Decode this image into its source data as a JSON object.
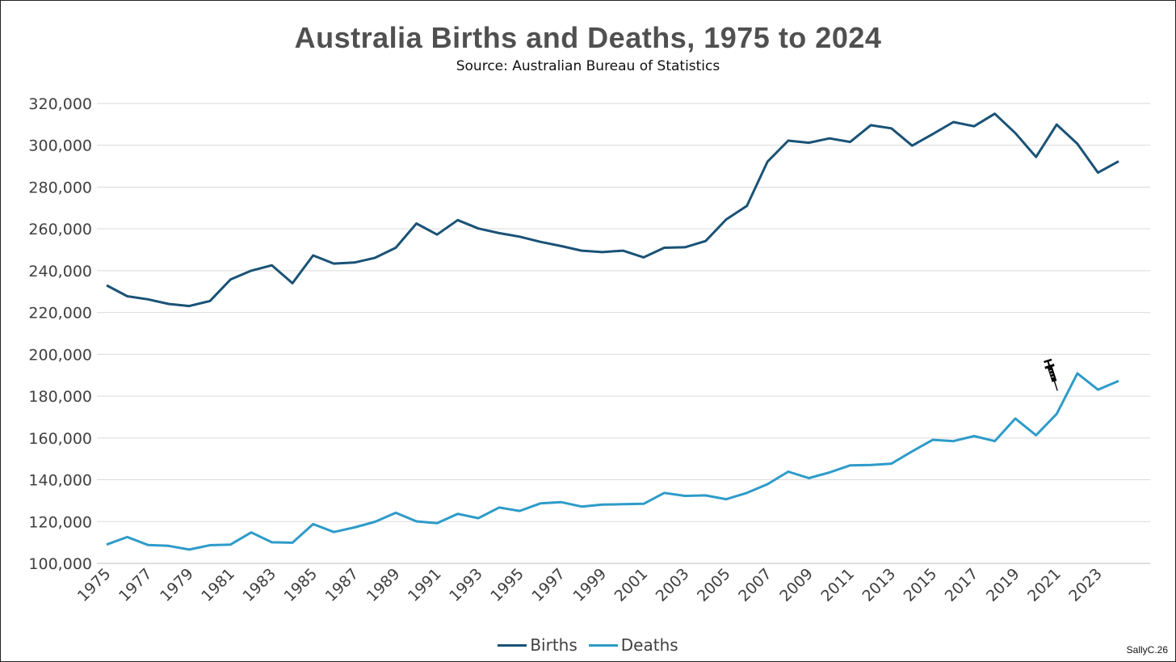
{
  "chart_data": {
    "type": "line",
    "title": "Australia Births and Deaths, 1975 to 2024",
    "subtitle": "Source: Australian Bureau of Statistics",
    "xlabel": "",
    "ylabel": "",
    "ylim": [
      100000,
      320000
    ],
    "yticks": [
      100000,
      120000,
      140000,
      160000,
      180000,
      200000,
      220000,
      240000,
      260000,
      280000,
      300000,
      320000
    ],
    "ytick_labels": [
      "100,000",
      "120,000",
      "140,000",
      "160,000",
      "180,000",
      "200,000",
      "220,000",
      "240,000",
      "260,000",
      "280,000",
      "300,000",
      "320,000"
    ],
    "x": [
      1975,
      1976,
      1977,
      1978,
      1979,
      1980,
      1981,
      1982,
      1983,
      1984,
      1985,
      1986,
      1987,
      1988,
      1989,
      1990,
      1991,
      1992,
      1993,
      1994,
      1995,
      1996,
      1997,
      1998,
      1999,
      2000,
      2001,
      2002,
      2003,
      2004,
      2005,
      2006,
      2007,
      2008,
      2009,
      2010,
      2011,
      2012,
      2013,
      2014,
      2015,
      2016,
      2017,
      2018,
      2019,
      2020,
      2021,
      2022,
      2023,
      2024
    ],
    "xtick_labels": [
      "1975",
      "1977",
      "1979",
      "1981",
      "1983",
      "1985",
      "1987",
      "1989",
      "1991",
      "1993",
      "1995",
      "1997",
      "1999",
      "2001",
      "2003",
      "2005",
      "2007",
      "2009",
      "2011",
      "2013",
      "2015",
      "2017",
      "2019",
      "2021",
      "2023"
    ],
    "grid": true,
    "legend_position": "bottom-center",
    "series": [
      {
        "name": "Births",
        "color": "#1a5276",
        "values": [
          233000,
          227800,
          226300,
          224100,
          223100,
          225500,
          235800,
          240000,
          242600,
          234000,
          247300,
          243400,
          243900,
          246200,
          251000,
          262600,
          257300,
          264200,
          260200,
          258000,
          256300,
          253800,
          251800,
          249600,
          248900,
          249600,
          246400,
          251000,
          251200,
          254200,
          264500,
          271000,
          292200,
          302200,
          301200,
          303300,
          301600,
          309600,
          308100,
          299800,
          305400,
          311100,
          309100,
          315100,
          305800,
          294400,
          309900,
          300700,
          286900,
          292300
        ]
      },
      {
        "name": "Deaths",
        "color": "#2e9bc9",
        "values": [
          109000,
          112600,
          108800,
          108400,
          106600,
          108700,
          109000,
          114800,
          110100,
          109900,
          118800,
          115000,
          117200,
          119900,
          124200,
          120100,
          119200,
          123700,
          121600,
          126700,
          125100,
          128700,
          129300,
          127200,
          128100,
          128300,
          128500,
          133700,
          132300,
          132500,
          130700,
          133700,
          137900,
          143900,
          140800,
          143500,
          146900,
          147100,
          147700,
          153600,
          159100,
          158500,
          160900,
          158500,
          169300,
          161300,
          171500,
          190900,
          183100,
          187300
        ]
      }
    ],
    "annotations": [
      {
        "type": "syringe-icon",
        "year": 2021
      }
    ]
  },
  "legend": {
    "births_label": "Births",
    "deaths_label": "Deaths"
  },
  "credit": "SallyC.26"
}
